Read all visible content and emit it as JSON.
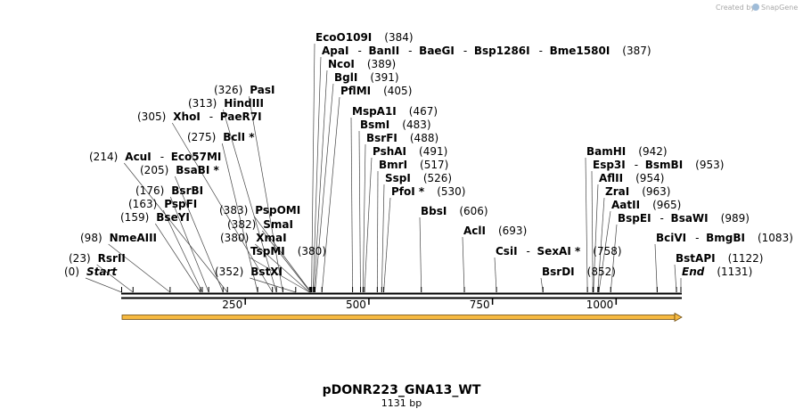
{
  "credit": {
    "prefix": "Created by",
    "brand": "SnapGene"
  },
  "title": "pDONR223_GNA13_WT",
  "length_label": "1131 bp",
  "seq_length": 1131,
  "axis_ticks": [
    {
      "pos": 250,
      "label": "250"
    },
    {
      "pos": 500,
      "label": "500"
    },
    {
      "pos": 750,
      "label": "750"
    },
    {
      "pos": 1000,
      "label": "1000"
    }
  ],
  "feature_color": "#f6b940",
  "sites": [
    {
      "pos": 0,
      "num": "(0)",
      "names": [
        "Start"
      ],
      "italic": true
    },
    {
      "pos": 23,
      "num": "(23)",
      "names": [
        "RsrII"
      ]
    },
    {
      "pos": 98,
      "num": "(98)",
      "names": [
        "NmeAIII"
      ]
    },
    {
      "pos": 159,
      "num": "(159)",
      "names": [
        "BseYI"
      ]
    },
    {
      "pos": 163,
      "num": "(163)",
      "names": [
        "PspFI"
      ]
    },
    {
      "pos": 176,
      "num": "(176)",
      "names": [
        "BsrBI"
      ]
    },
    {
      "pos": 205,
      "num": "(205)",
      "names": [
        "BsaBI *"
      ]
    },
    {
      "pos": 214,
      "num": "(214)",
      "names": [
        "AcuI",
        "Eco57MI"
      ]
    },
    {
      "pos": 275,
      "num": "(275)",
      "names": [
        "BclI *"
      ]
    },
    {
      "pos": 305,
      "num": "(305)",
      "names": [
        "XhoI",
        "PaeR7I"
      ]
    },
    {
      "pos": 313,
      "num": "(313)",
      "names": [
        "HindIII"
      ]
    },
    {
      "pos": 326,
      "num": "(326)",
      "names": [
        "PasI"
      ]
    },
    {
      "pos": 352,
      "num": "(352)",
      "names": [
        "BstXI"
      ]
    },
    {
      "pos": 380,
      "num": "(380)",
      "names": [
        "TspMI"
      ]
    },
    {
      "pos": 380,
      "num": "(380)",
      "names": [
        "XmaI"
      ]
    },
    {
      "pos": 382,
      "num": "(382)",
      "names": [
        "SmaI"
      ]
    },
    {
      "pos": 383,
      "num": "(383)",
      "names": [
        "PspOMI"
      ]
    },
    {
      "pos": 384,
      "num": "(384)",
      "names": [
        "EcoO109I"
      ]
    },
    {
      "pos": 387,
      "num": "(387)",
      "names": [
        "ApaI",
        "BanII",
        "BaeGI",
        "Bsp1286I",
        "Bme1580I"
      ]
    },
    {
      "pos": 389,
      "num": "(389)",
      "names": [
        "NcoI"
      ]
    },
    {
      "pos": 391,
      "num": "(391)",
      "names": [
        "BglI"
      ]
    },
    {
      "pos": 405,
      "num": "(405)",
      "names": [
        "PflMI"
      ]
    },
    {
      "pos": 467,
      "num": "(467)",
      "names": [
        "MspA1I"
      ]
    },
    {
      "pos": 483,
      "num": "(483)",
      "names": [
        "BsmI"
      ]
    },
    {
      "pos": 488,
      "num": "(488)",
      "names": [
        "BsrFI"
      ]
    },
    {
      "pos": 491,
      "num": "(491)",
      "names": [
        "PshAI"
      ]
    },
    {
      "pos": 517,
      "num": "(517)",
      "names": [
        "BmrI"
      ]
    },
    {
      "pos": 526,
      "num": "(526)",
      "names": [
        "SspI"
      ]
    },
    {
      "pos": 530,
      "num": "(530)",
      "names": [
        "PfoI *"
      ]
    },
    {
      "pos": 606,
      "num": "(606)",
      "names": [
        "BbsI"
      ]
    },
    {
      "pos": 693,
      "num": "(693)",
      "names": [
        "AclI"
      ]
    },
    {
      "pos": 758,
      "num": "(758)",
      "names": [
        "CsiI",
        "SexAI *"
      ]
    },
    {
      "pos": 852,
      "num": "(852)",
      "names": [
        "BsrDI"
      ]
    },
    {
      "pos": 942,
      "num": "(942)",
      "names": [
        "BamHI"
      ]
    },
    {
      "pos": 953,
      "num": "(953)",
      "names": [
        "Esp3I",
        "BsmBI"
      ]
    },
    {
      "pos": 954,
      "num": "(954)",
      "names": [
        "AflII"
      ]
    },
    {
      "pos": 963,
      "num": "(963)",
      "names": [
        "ZraI"
      ]
    },
    {
      "pos": 965,
      "num": "(965)",
      "names": [
        "AatII"
      ]
    },
    {
      "pos": 989,
      "num": "(989)",
      "names": [
        "BspEI",
        "BsaWI"
      ]
    },
    {
      "pos": 1083,
      "num": "(1083)",
      "names": [
        "BciVI",
        "BmgBI"
      ]
    },
    {
      "pos": 1122,
      "num": "(1122)",
      "names": [
        "BstAPI"
      ]
    },
    {
      "pos": 1131,
      "num": "(1131)",
      "names": [
        "End"
      ],
      "italic": true
    }
  ]
}
